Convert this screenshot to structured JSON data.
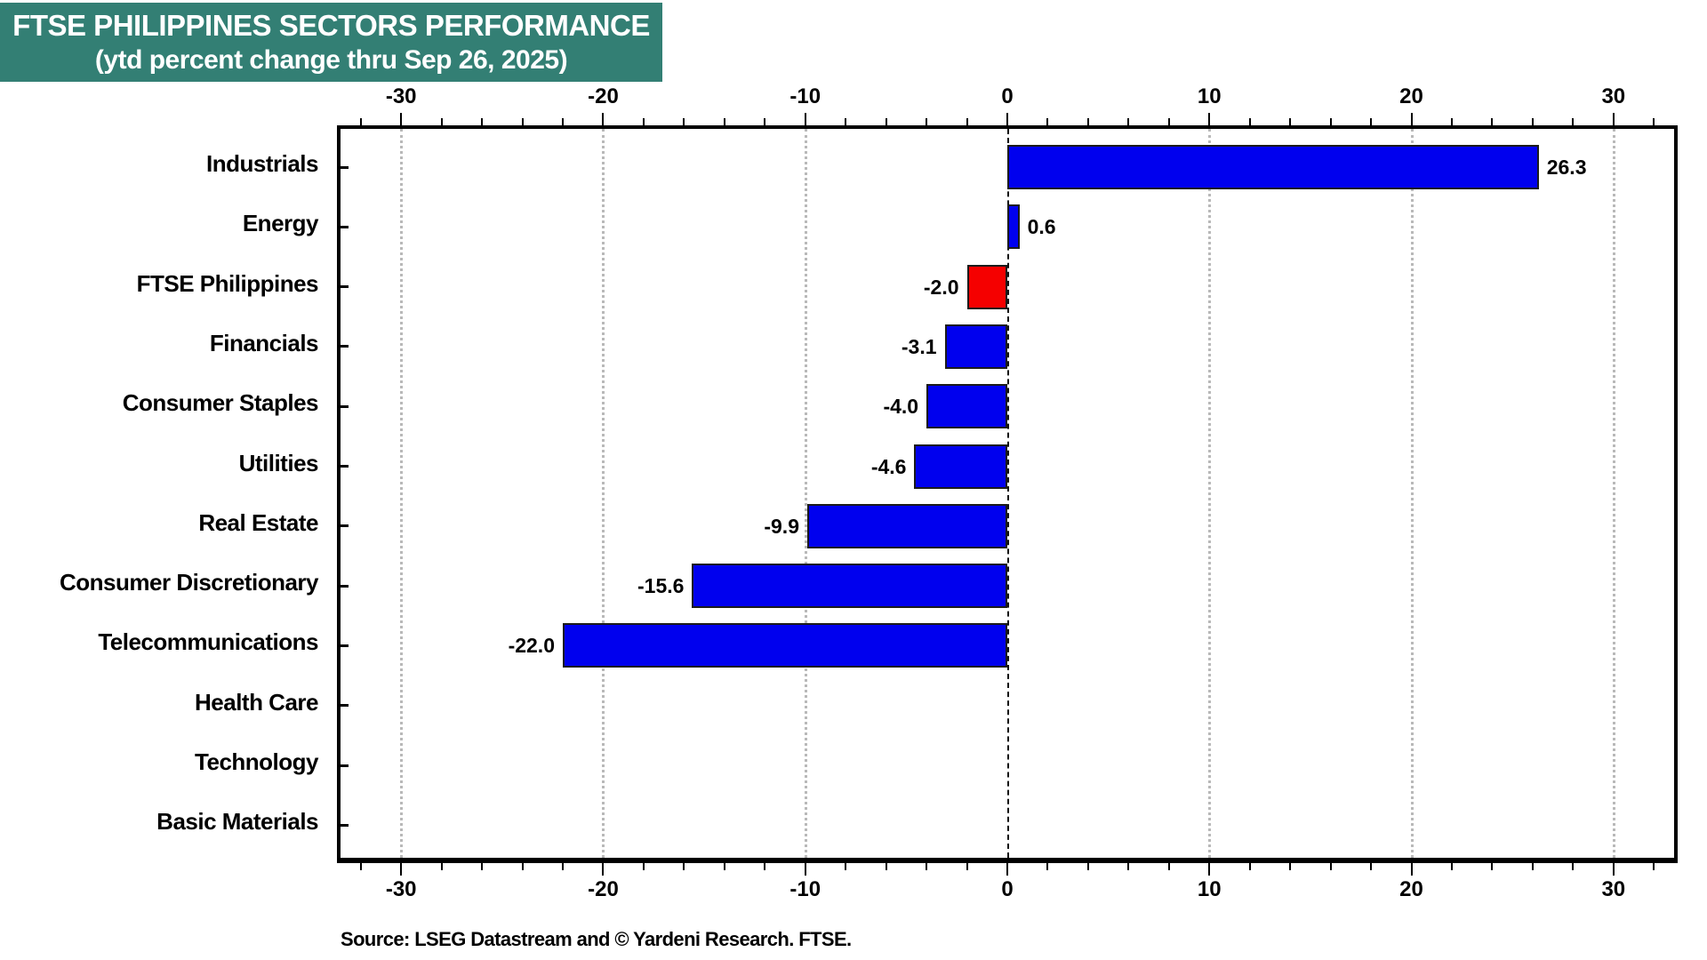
{
  "header": {
    "title": "FTSE PHILIPPINES SECTORS PERFORMANCE",
    "subtitle": "(ytd percent change thru Sep 26, 2025)",
    "bg_color": "#337F74",
    "text_color": "#ffffff"
  },
  "source_note": "Source: LSEG Datastream and © Yardeni Research. FTSE.",
  "chart_data": {
    "type": "bar",
    "orientation": "horizontal",
    "title": "FTSE PHILIPPINES SECTORS PERFORMANCE",
    "subtitle": "(ytd percent change thru Sep 26, 2025)",
    "xlabel": "ytd percent change",
    "ylabel": "",
    "xlim": [
      -33,
      33
    ],
    "x_major_ticks": [
      -30,
      -20,
      -10,
      0,
      10,
      20,
      30
    ],
    "x_minor_tick_step": 2,
    "grid": "vertical-dotted-gray",
    "zero_line": "vertical-dashed-black",
    "axis_label_positions": [
      "top",
      "bottom"
    ],
    "palette": {
      "blue": "#0000EE",
      "red": "#F50000",
      "grid": "#b9b9b9"
    },
    "bars": [
      {
        "category": "Industrials",
        "value": 26.3,
        "label": "26.3",
        "color": "blue"
      },
      {
        "category": "Energy",
        "value": 0.6,
        "label": "0.6",
        "color": "blue"
      },
      {
        "category": "FTSE Philippines",
        "value": -2.0,
        "label": "-2.0",
        "color": "red"
      },
      {
        "category": "Financials",
        "value": -3.1,
        "label": "-3.1",
        "color": "blue"
      },
      {
        "category": "Consumer Staples",
        "value": -4.0,
        "label": "-4.0",
        "color": "blue"
      },
      {
        "category": "Utilities",
        "value": -4.6,
        "label": "-4.6",
        "color": "blue"
      },
      {
        "category": "Real Estate",
        "value": -9.9,
        "label": "-9.9",
        "color": "blue"
      },
      {
        "category": "Consumer Discretionary",
        "value": -15.6,
        "label": "-15.6",
        "color": "blue"
      },
      {
        "category": "Telecommunications",
        "value": -22.0,
        "label": "-22.0",
        "color": "blue"
      },
      {
        "category": "Health Care",
        "value": null,
        "label": "",
        "color": null
      },
      {
        "category": "Technology",
        "value": null,
        "label": "",
        "color": null
      },
      {
        "category": "Basic Materials",
        "value": null,
        "label": "",
        "color": null
      }
    ]
  }
}
